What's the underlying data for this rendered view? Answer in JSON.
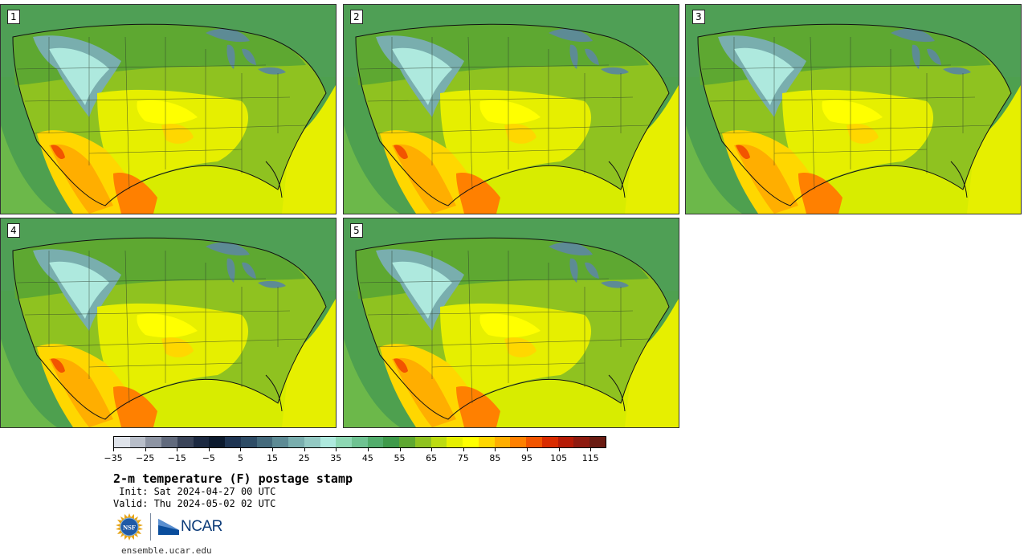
{
  "panels": [
    {
      "label": "1"
    },
    {
      "label": "2"
    },
    {
      "label": "3"
    },
    {
      "label": "4"
    },
    {
      "label": "5"
    }
  ],
  "colorbar": {
    "colors": [
      "#dfe3ea",
      "#b8bec9",
      "#8d94a3",
      "#616a7d",
      "#3a4459",
      "#1c2941",
      "#0c1a2e",
      "#1f3553",
      "#2e4c66",
      "#446a7c",
      "#5d8b95",
      "#79aeae",
      "#93c9c3",
      "#aee9de",
      "#8ed8b4",
      "#6fc392",
      "#52ad6c",
      "#3e9a4a",
      "#5ea831",
      "#8fc220",
      "#bcdb10",
      "#e6ef00",
      "#ffff00",
      "#ffd700",
      "#ffae00",
      "#ff8000",
      "#f25400",
      "#d92b00",
      "#b51a06",
      "#8e1a10",
      "#6a1b12"
    ],
    "min": -35,
    "max": 120,
    "step": 5,
    "tick_labels": [
      "−35",
      "−25",
      "−15",
      "−5",
      "5",
      "15",
      "25",
      "35",
      "45",
      "55",
      "65",
      "75",
      "85",
      "95",
      "105",
      "115"
    ],
    "tick_values": [
      -35,
      -25,
      -15,
      -5,
      5,
      15,
      25,
      35,
      45,
      55,
      65,
      75,
      85,
      95,
      105,
      115
    ]
  },
  "title": "2-m temperature (F) postage stamp",
  "init": " Init: Sat 2024-04-27 00 UTC",
  "valid": "Valid: Thu 2024-05-02 02 UTC",
  "logos": {
    "nsf": "NSF",
    "ncar": "NCAR"
  },
  "site": "ensemble.ucar.edu"
}
